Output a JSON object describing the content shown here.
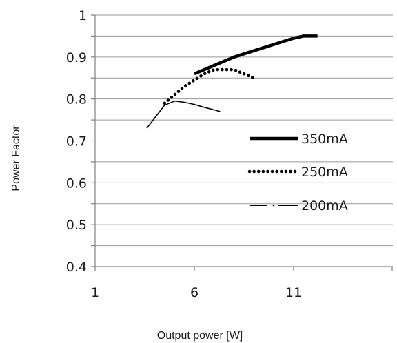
{
  "chart_data": {
    "type": "line",
    "title": "",
    "xlabel": "Output power [W]",
    "ylabel": "Power Factor",
    "xlim": [
      1,
      16
    ],
    "ylim": [
      0.4,
      1.0
    ],
    "x_ticks": [
      1,
      6,
      11
    ],
    "x_tick_labels": [
      "1",
      "6",
      "11"
    ],
    "y_ticks": [
      0.4,
      0.5,
      0.6,
      0.7,
      0.8,
      0.9,
      1.0
    ],
    "y_tick_labels": [
      "0.4",
      "0.5",
      "0.6",
      "0.7",
      "0.8",
      "0.9",
      "1"
    ],
    "grid": "horizontal major and minor",
    "legend_position": "inside right",
    "series": [
      {
        "name": "350mA",
        "style": "solid-thick",
        "color": "#000000",
        "x": [
          6.0,
          7.0,
          8.0,
          9.0,
          10.0,
          11.0,
          11.5,
          12.2
        ],
        "y": [
          0.86,
          0.88,
          0.9,
          0.915,
          0.93,
          0.945,
          0.95,
          0.95
        ]
      },
      {
        "name": "250mA",
        "style": "dotted",
        "color": "#000000",
        "x": [
          4.5,
          5.0,
          5.5,
          6.0,
          6.5,
          7.0,
          7.5,
          8.0,
          8.5,
          9.0
        ],
        "y": [
          0.79,
          0.81,
          0.83,
          0.845,
          0.86,
          0.87,
          0.87,
          0.87,
          0.86,
          0.85
        ]
      },
      {
        "name": "200mA",
        "style": "solid-thin",
        "color": "#000000",
        "x": [
          3.6,
          4.5,
          5.0,
          5.5,
          6.0,
          6.5,
          7.0,
          7.3
        ],
        "y": [
          0.73,
          0.785,
          0.795,
          0.792,
          0.787,
          0.78,
          0.774,
          0.77
        ]
      }
    ]
  }
}
